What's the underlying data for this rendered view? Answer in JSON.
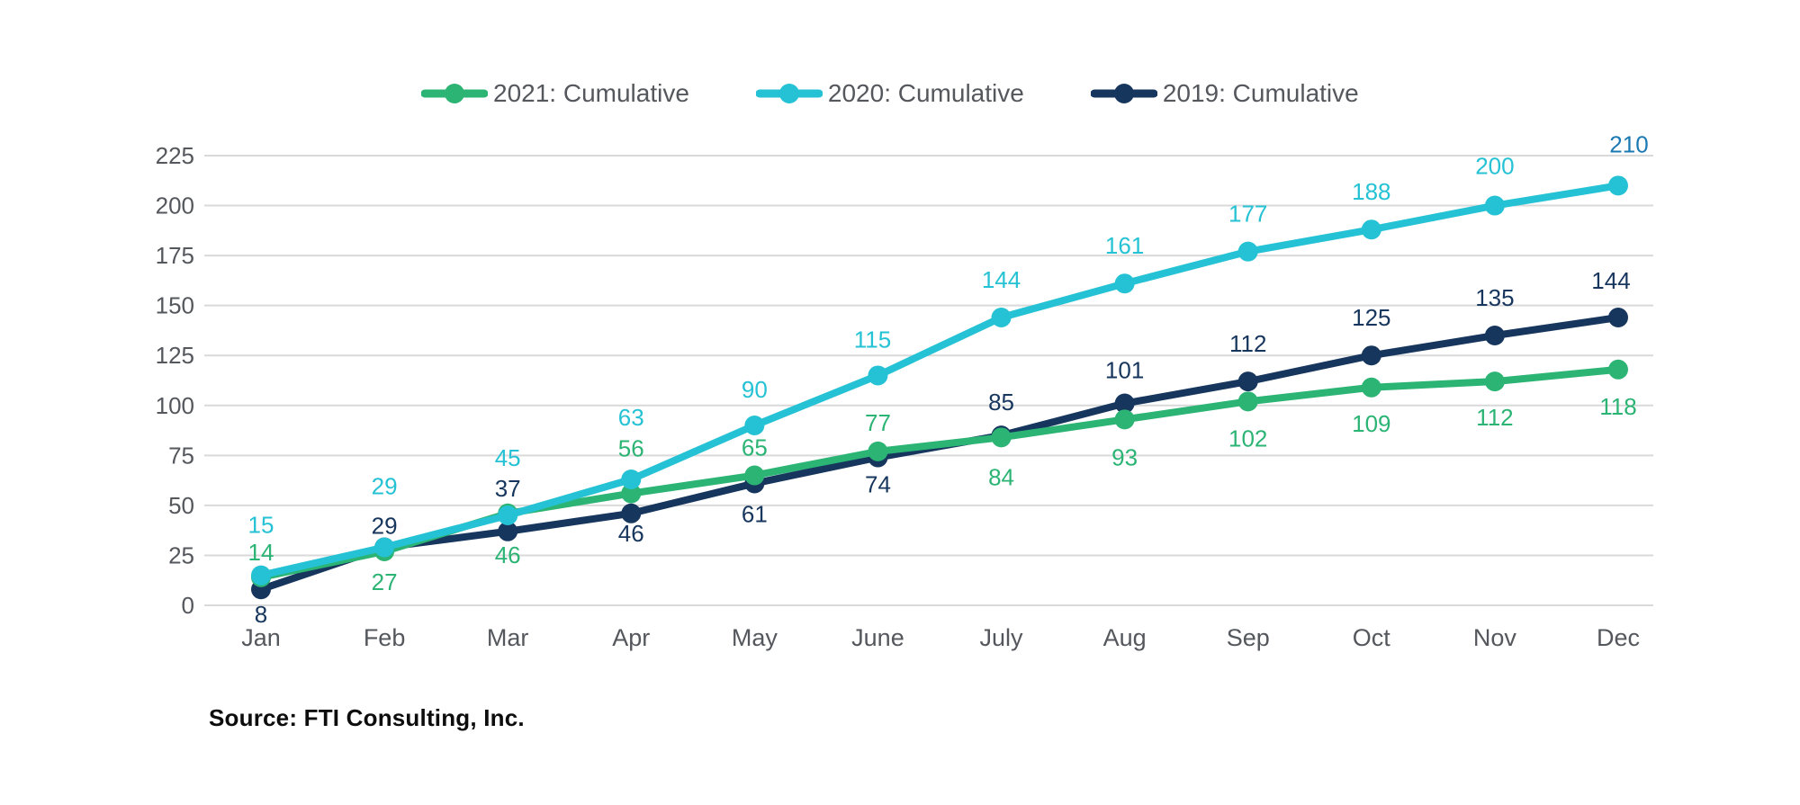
{
  "legend": {
    "items": [
      {
        "label": "2021: Cumulative",
        "color": "#2cb475"
      },
      {
        "label": "2020: Cumulative",
        "color": "#24c2d4"
      },
      {
        "label": "2019: Cumulative",
        "color": "#17365d"
      }
    ]
  },
  "chart_data": {
    "type": "line",
    "categories": [
      "Jan",
      "Feb",
      "Mar",
      "Apr",
      "May",
      "June",
      "July",
      "Aug",
      "Sep",
      "Oct",
      "Nov",
      "Dec"
    ],
    "series": [
      {
        "name": "2021: Cumulative",
        "color": "#2cb475",
        "values": [
          14,
          27,
          46,
          56,
          65,
          77,
          84,
          93,
          102,
          109,
          112,
          118
        ]
      },
      {
        "name": "2020: Cumulative",
        "color": "#24c2d4",
        "values": [
          15,
          29,
          45,
          63,
          90,
          115,
          144,
          161,
          177,
          188,
          200,
          210
        ],
        "last_label_color": "#1b79b3"
      },
      {
        "name": "2019: Cumulative",
        "color": "#17365d",
        "values": [
          8,
          29,
          37,
          46,
          61,
          74,
          85,
          101,
          112,
          125,
          135,
          144
        ]
      }
    ],
    "title": "",
    "xlabel": "",
    "ylabel": "",
    "ylim": [
      0,
      225
    ],
    "ytick_step": 25,
    "grid": "horizontal",
    "legend_position": "top",
    "data_labels": true
  },
  "source": {
    "text": "Source: FTI Consulting, Inc."
  },
  "colors": {
    "background": "#ffffff",
    "grid": "#d9d9d9",
    "axis_text": "#54575c",
    "data_label_highlight": "#1b79b3",
    "source_text": "#0d0d0d"
  }
}
